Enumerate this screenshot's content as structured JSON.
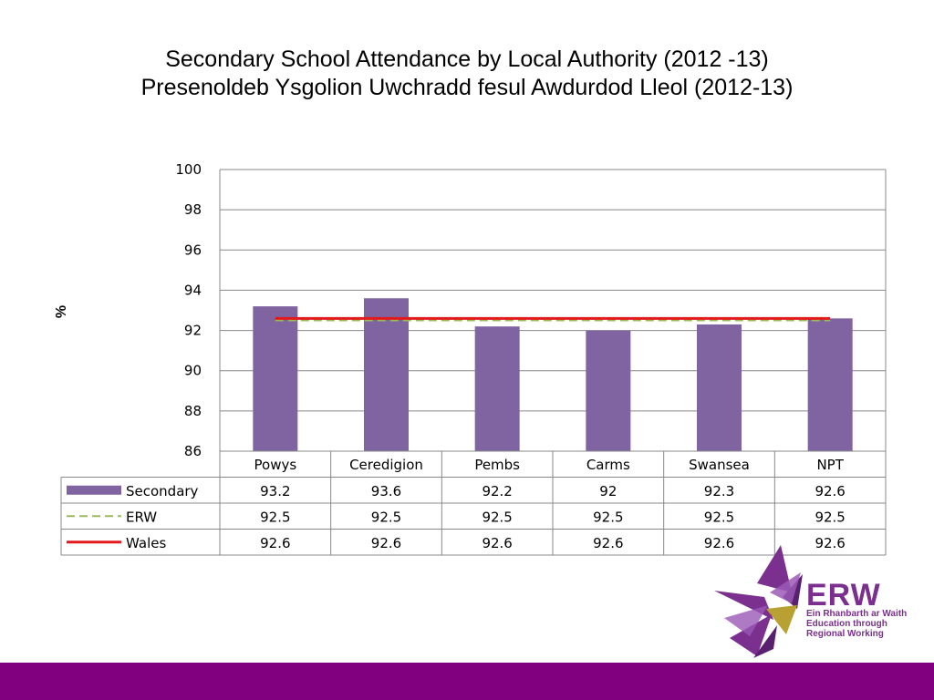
{
  "title": {
    "line1": "Secondary School Attendance by Local Authority (2012 -13)",
    "line2": "Presenoldeb Ysgolion Uwchradd fesul Awdurdod Lleol (2012-13)"
  },
  "brand": {
    "name": "ERW",
    "tagline": [
      "Ein Rhanbarth ar Waith",
      "Education through",
      "Regional Working"
    ],
    "colors": {
      "purple": "#7b2f8e",
      "dark_purple": "#5a2070",
      "gold": "#b9a032",
      "footer": "#800080"
    }
  },
  "chart_data": {
    "type": "bar",
    "categories": [
      "Powys",
      "Ceredigion",
      "Pembs",
      "Carms",
      "Swansea",
      "NPT"
    ],
    "ylabel": "%",
    "ylim": [
      86,
      100
    ],
    "yticks": [
      86,
      88,
      90,
      92,
      94,
      96,
      98,
      100
    ],
    "grid": true,
    "legend": "data-table",
    "series": [
      {
        "name": "Secondary",
        "type": "bar",
        "color": "#8064a2",
        "values": [
          93.2,
          93.6,
          92.2,
          92,
          92.3,
          92.6
        ]
      },
      {
        "name": "ERW",
        "type": "line",
        "style": "dashed",
        "color": "#9bbb59",
        "values": [
          92.5,
          92.5,
          92.5,
          92.5,
          92.5,
          92.5
        ]
      },
      {
        "name": "Wales",
        "type": "line",
        "style": "solid",
        "color": "#e31a1c",
        "values": [
          92.6,
          92.6,
          92.6,
          92.6,
          92.6,
          92.6
        ]
      }
    ]
  }
}
